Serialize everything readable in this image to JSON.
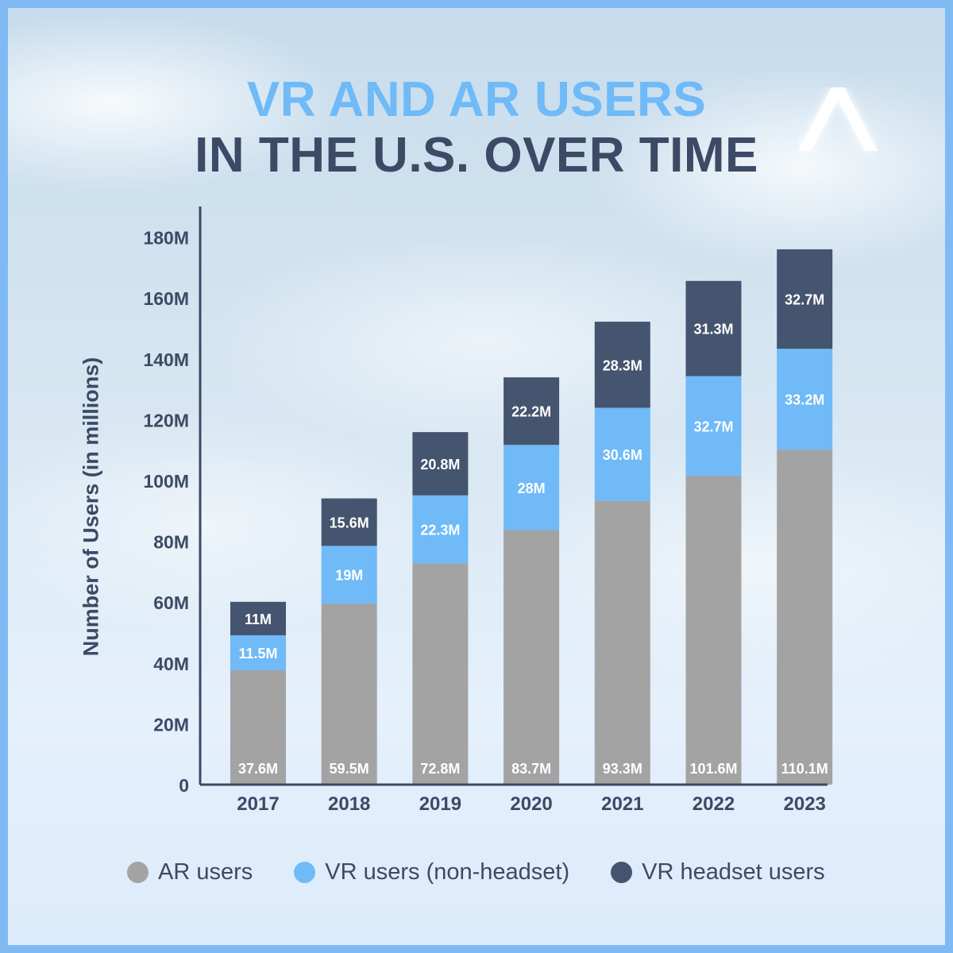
{
  "header": {
    "title_line1": "VR AND AR USERS",
    "title_line2": "IN THE U.S. OVER TIME",
    "logo_icon": "caret-up-icon"
  },
  "chart_data": {
    "type": "bar",
    "stacked": true,
    "title": "VR AND AR USERS IN THE U.S. OVER TIME",
    "xlabel": "",
    "ylabel": "Number of Users (in millions)",
    "ylim": [
      0,
      180
    ],
    "y_ticks": [
      0,
      20,
      40,
      60,
      80,
      100,
      120,
      140,
      160,
      180
    ],
    "y_tick_labels": [
      "0",
      "20M",
      "40M",
      "60M",
      "80M",
      "100M",
      "120M",
      "140M",
      "160M",
      "180M"
    ],
    "categories": [
      "2017",
      "2018",
      "2019",
      "2020",
      "2021",
      "2022",
      "2023"
    ],
    "series": [
      {
        "name": "AR users",
        "color": "#a3a3a3",
        "values": [
          37.6,
          59.5,
          72.8,
          83.7,
          93.3,
          101.6,
          110.1
        ],
        "labels": [
          "37.6M",
          "59.5M",
          "72.8M",
          "83.7M",
          "93.3M",
          "101.6M",
          "110.1M"
        ]
      },
      {
        "name": "VR users (non-headset)",
        "color": "#6fbaf7",
        "values": [
          11.5,
          19,
          22.3,
          28,
          30.6,
          32.7,
          33.2
        ],
        "labels": [
          "11.5M",
          "19M",
          "22.3M",
          "28M",
          "30.6M",
          "32.7M",
          "33.2M"
        ]
      },
      {
        "name": "VR headset users",
        "color": "#45546f",
        "values": [
          11,
          15.6,
          20.8,
          22.2,
          28.3,
          31.3,
          32.7
        ],
        "labels": [
          "11M",
          "15.6M",
          "20.8M",
          "22.2M",
          "28.3M",
          "31.3M",
          "32.7M"
        ]
      }
    ],
    "grid": false,
    "legend": "bottom"
  },
  "colors": {
    "axis": "#3c4a65",
    "title_accent": "#6fbaf7",
    "title_dark": "#3c4a65",
    "frame": "#7fbaf5"
  }
}
